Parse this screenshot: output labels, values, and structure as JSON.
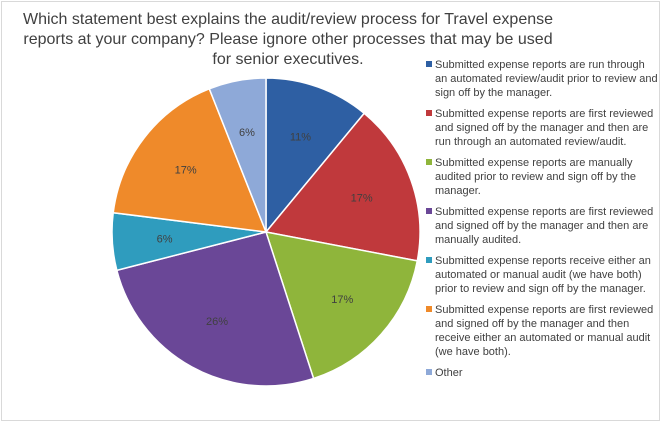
{
  "chart_data": {
    "type": "pie",
    "title": "Which statement best explains the audit/review process for Travel expense reports at your company? Please ignore other processes that may be used for senior executives.",
    "legend_position": "right",
    "slices": [
      {
        "label": "Submitted expense reports are run through an automated review/audit prior to review and sign off by the manager.",
        "value": 11,
        "display": "11%",
        "color": "#2e5fa3"
      },
      {
        "label": "Submitted expense reports are first reviewed and signed off by the manager and then are run through an automated review/audit.",
        "value": 17,
        "display": "17%",
        "color": "#c0393c"
      },
      {
        "label": "Submitted expense reports are manually audited prior to review and sign off by the manager.",
        "value": 17,
        "display": "17%",
        "color": "#8fb53b"
      },
      {
        "label": "Submitted expense reports are first reviewed and signed off by the manager and then are manually audited.",
        "value": 26,
        "display": "26%",
        "color": "#6a4797"
      },
      {
        "label": "Submitted expense reports receive either an automated or manual audit (we have both) prior to review and sign off by the manager.",
        "value": 6,
        "display": "6%",
        "color": "#2f9cbe"
      },
      {
        "label": "Submitted expense reports are first reviewed and signed off by the manager and then receive either an automated or manual audit (we have both).",
        "value": 17,
        "display": "17%",
        "color": "#ef8a2a"
      },
      {
        "label": "Other",
        "value": 6,
        "display": "6%",
        "color": "#8ea9d8"
      }
    ]
  }
}
